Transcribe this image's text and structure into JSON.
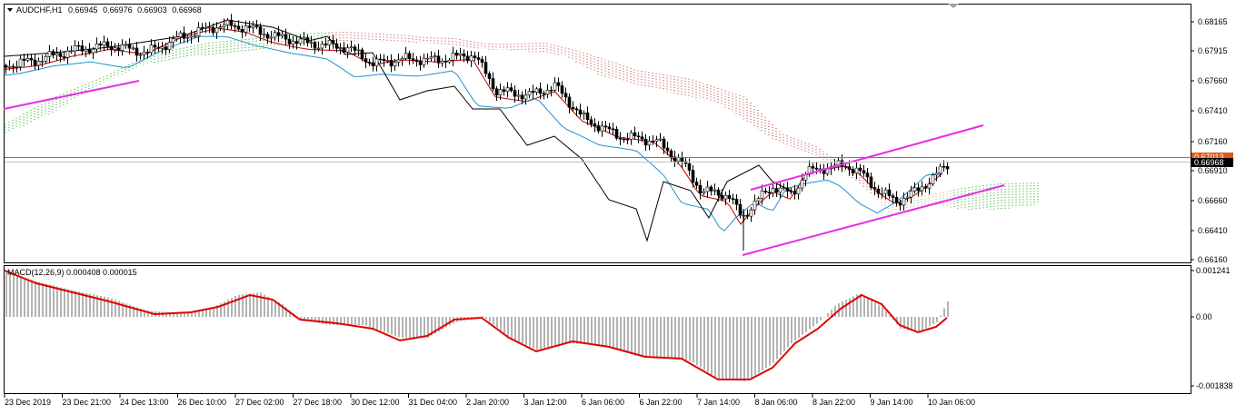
{
  "header": {
    "symbol": "AUDCHF,H1",
    "open": "0.66945",
    "high": "0.66976",
    "low": "0.66903",
    "close": "0.66968"
  },
  "indicator": {
    "label": "MACD(12,26,9) 0.000408 0.000015"
  },
  "price_axis": {
    "labels": [
      "0.68165",
      "0.67915",
      "0.67660",
      "0.67410",
      "0.67160",
      "0.66910",
      "0.66660",
      "0.66410",
      "0.66160"
    ],
    "current_price": "0.66968",
    "line_price": "0.67013"
  },
  "macd_axis": {
    "labels": [
      "0.001241",
      "0.00",
      "-0.001838"
    ]
  },
  "time_axis": {
    "labels": [
      "23 Dec 2019",
      "23 Dec 21:00",
      "24 Dec 13:00",
      "26 Dec 10:00",
      "27 Dec 02:00",
      "27 Dec 18:00",
      "30 Dec 12:00",
      "31 Dec 04:00",
      "2 Jan 20:00",
      "3 Jan 12:00",
      "6 Jan 06:00",
      "6 Jan 22:00",
      "7 Jan 14:00",
      "8 Jan 06:00",
      "8 Jan 22:00",
      "9 Jan 14:00",
      "10 Jan 06:00"
    ]
  },
  "colors": {
    "price_line": "#e05a1e",
    "trendline": "#e62ee6",
    "macd_signal": "#e00000",
    "macd_hist": "#b4b4b4",
    "kijun": "#c00000",
    "tenkan": "#2090d0",
    "kumo_bull": "#00a000",
    "kumo_bear": "#c03030"
  },
  "icons": {
    "dropdown": "triangle-down-icon",
    "scroll_marker": "chart-shift-icon"
  }
}
